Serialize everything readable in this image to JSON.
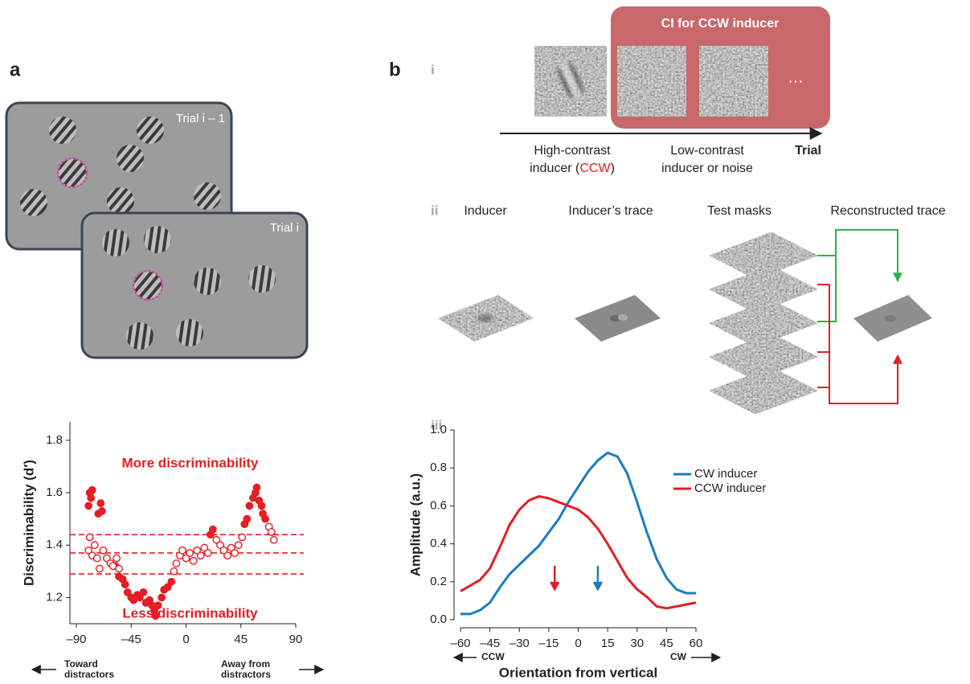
{
  "panel_a": {
    "label": "a",
    "trial_prev": "Trial i – 1",
    "trial_curr": "Trial i"
  },
  "panel_b": {
    "label": "b",
    "i": {
      "label": "i",
      "box_title": "CI for CCW inducer",
      "ellipsis": "…",
      "axis_label": "Trial",
      "inducer_caption": [
        "High-contrast",
        "inducer (",
        "CCW",
        ")"
      ],
      "noise_caption": [
        "Low-contrast",
        "inducer or noise"
      ]
    },
    "ii": {
      "label": "ii",
      "columns": [
        "Inducer",
        "Inducer’s trace",
        "Test masks",
        "Reconstructed trace"
      ]
    },
    "iii": {
      "label": "iii"
    }
  },
  "chart_data": [
    {
      "type": "scatter",
      "ylabel": "Discriminability (d′)",
      "xlim": [
        -90,
        90
      ],
      "xticks": [
        {
          "value": -90,
          "label": "–90"
        },
        {
          "value": -45,
          "label": "–45"
        },
        0,
        45,
        90
      ],
      "ylim": [
        1.1,
        1.87
      ],
      "yticks": [
        1.2,
        1.4,
        1.6,
        1.8
      ],
      "annotations": [
        "More discriminability",
        "Less discriminability"
      ],
      "x_direction_labels": [
        [
          "Toward",
          "distractors"
        ],
        [
          "Away from",
          "distractors"
        ]
      ],
      "hlines": [
        1.44,
        1.37,
        1.29
      ],
      "hline_style": "dashed",
      "hline_color": "#e31e24",
      "series": [
        {
          "color": "#e31e24",
          "marker": "filled",
          "x": [
            -80,
            -79,
            -78,
            -77,
            -72,
            -70,
            -69,
            -58,
            -55,
            -52,
            -50,
            -48,
            -45,
            -43,
            -40,
            -38,
            -35,
            -33,
            -30,
            -28,
            -26,
            -25,
            -23,
            -20,
            -18,
            -15,
            -12,
            20,
            22,
            48,
            50,
            52,
            55,
            57,
            58,
            60,
            62,
            63,
            65
          ],
          "values": [
            1.55,
            1.6,
            1.58,
            1.61,
            1.52,
            1.56,
            1.53,
            1.32,
            1.28,
            1.27,
            1.25,
            1.22,
            1.2,
            1.19,
            1.21,
            1.2,
            1.22,
            1.18,
            1.19,
            1.17,
            1.15,
            1.13,
            1.17,
            1.2,
            1.23,
            1.24,
            1.26,
            1.44,
            1.46,
            1.48,
            1.5,
            1.55,
            1.58,
            1.6,
            1.62,
            1.57,
            1.55,
            1.52,
            1.5
          ]
        },
        {
          "color": "#e31e24",
          "marker": "open",
          "x": [
            -80,
            -79,
            -77,
            -75,
            -73,
            -71,
            -68,
            -65,
            -62,
            -60,
            -57,
            -55,
            -10,
            -8,
            -5,
            -3,
            0,
            3,
            6,
            9,
            12,
            15,
            18,
            25,
            28,
            31,
            34,
            37,
            40,
            43,
            46,
            68,
            70,
            72
          ],
          "values": [
            1.38,
            1.43,
            1.36,
            1.4,
            1.35,
            1.31,
            1.38,
            1.35,
            1.33,
            1.32,
            1.35,
            1.31,
            1.3,
            1.33,
            1.36,
            1.38,
            1.35,
            1.37,
            1.34,
            1.38,
            1.36,
            1.39,
            1.37,
            1.42,
            1.4,
            1.38,
            1.36,
            1.39,
            1.37,
            1.4,
            1.43,
            1.47,
            1.45,
            1.42
          ]
        }
      ]
    },
    {
      "type": "line",
      "xlabel": "Orientation from vertical",
      "ylabel": "Amplitude (a.u.)",
      "xlim": [
        -60,
        60
      ],
      "xticks": [
        {
          "value": -60,
          "label": "–60"
        },
        {
          "value": -45,
          "label": "–45"
        },
        {
          "value": -30,
          "label": "–30"
        },
        {
          "value": -15,
          "label": "–15"
        },
        0,
        15,
        30,
        45,
        60
      ],
      "ylim": [
        0,
        1
      ],
      "yticks": [
        {
          "value": 0,
          "label": "0.0"
        },
        0.2,
        0.4,
        0.6,
        0.8,
        {
          "value": 1,
          "label": "1.0"
        }
      ],
      "x_direction_labels": [
        "CCW",
        "CW"
      ],
      "legend": "right",
      "arrows": [
        {
          "x": -12,
          "color": "#e31e24"
        },
        {
          "x": 10,
          "color": "#1a7dbf"
        }
      ],
      "x": [
        -60,
        -55,
        -50,
        -45,
        -40,
        -35,
        -30,
        -25,
        -20,
        -15,
        -10,
        -5,
        0,
        5,
        10,
        15,
        20,
        25,
        30,
        35,
        40,
        45,
        50,
        55,
        60
      ],
      "series": [
        {
          "name": "CW inducer",
          "color": "#1a7dbf",
          "values": [
            0.03,
            0.03,
            0.05,
            0.09,
            0.17,
            0.24,
            0.29,
            0.34,
            0.39,
            0.46,
            0.53,
            0.62,
            0.7,
            0.78,
            0.84,
            0.88,
            0.86,
            0.77,
            0.62,
            0.46,
            0.32,
            0.22,
            0.16,
            0.14,
            0.14
          ]
        },
        {
          "name": "CCW inducer",
          "color": "#e31e24",
          "values": [
            0.15,
            0.18,
            0.21,
            0.27,
            0.38,
            0.5,
            0.58,
            0.63,
            0.65,
            0.64,
            0.62,
            0.6,
            0.58,
            0.54,
            0.48,
            0.4,
            0.31,
            0.22,
            0.16,
            0.12,
            0.07,
            0.06,
            0.07,
            0.08,
            0.09
          ]
        }
      ]
    }
  ]
}
